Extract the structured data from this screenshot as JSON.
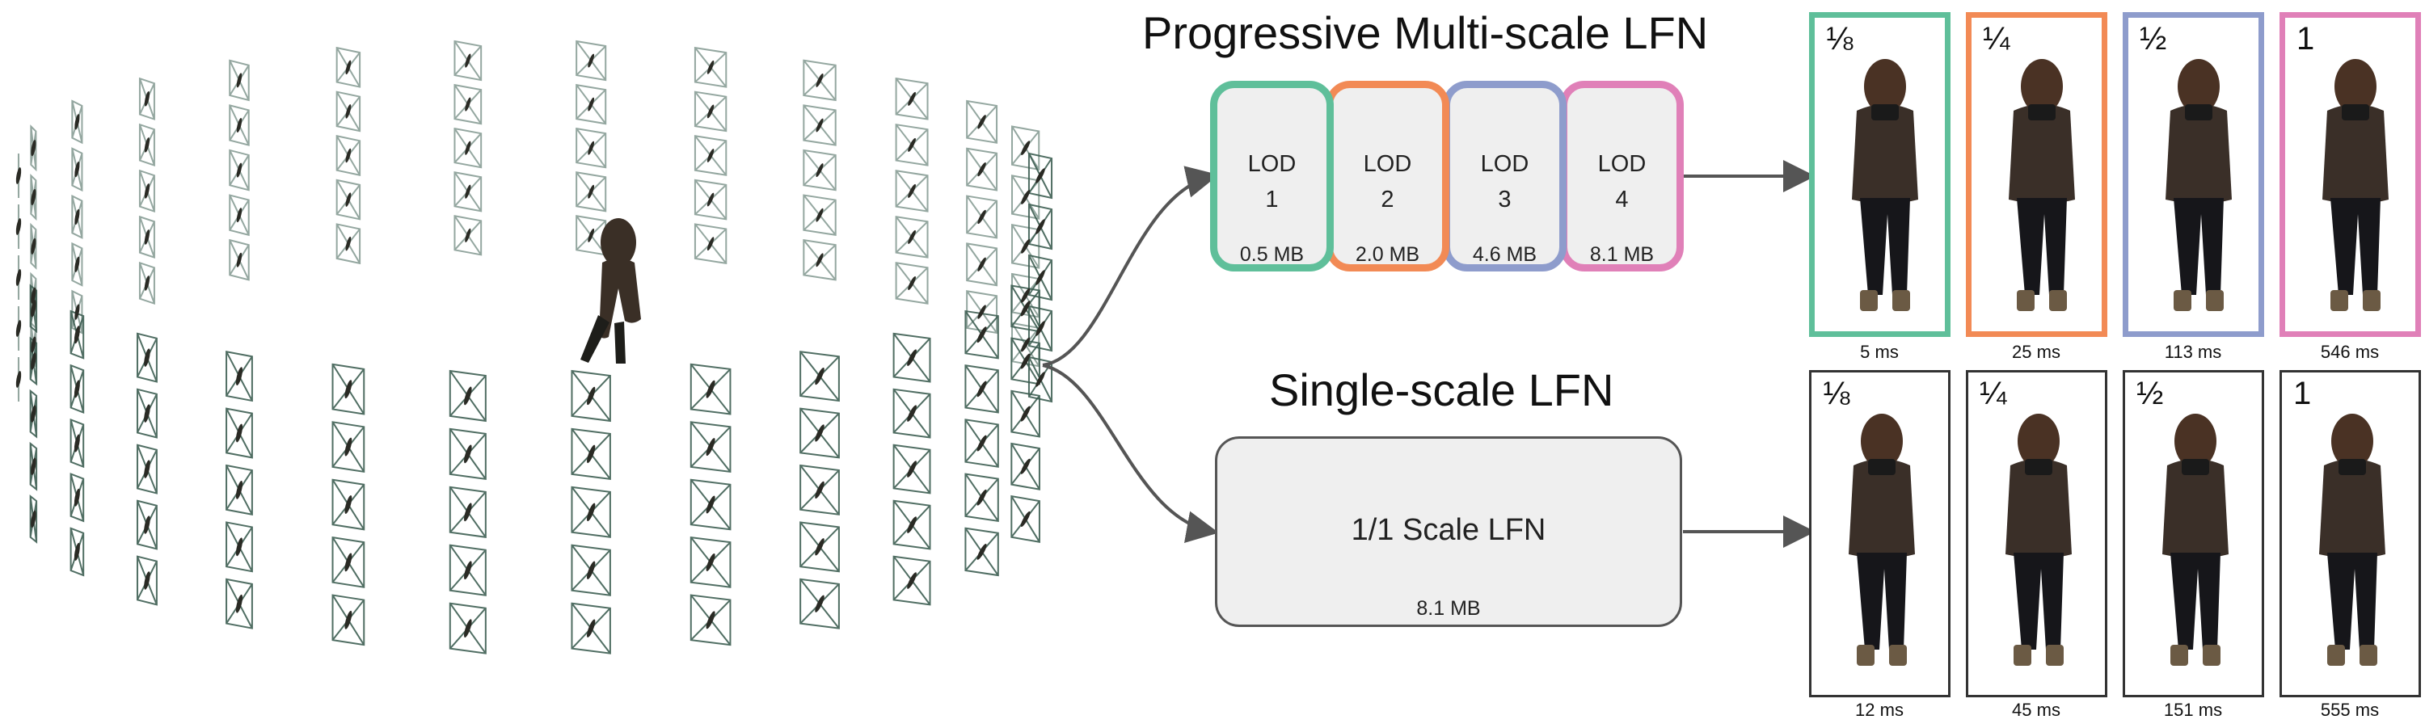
{
  "titles": {
    "progressive": "Progressive Multi-scale LFN",
    "single": "Single-scale LFN"
  },
  "lods": [
    {
      "line1": "LOD",
      "line2": "1",
      "size": "0.5 MB",
      "color": "#5fbf9a"
    },
    {
      "line1": "LOD",
      "line2": "2",
      "size": "2.0 MB",
      "color": "#f28a55"
    },
    {
      "line1": "LOD",
      "line2": "3",
      "size": "4.6 MB",
      "color": "#8e9ccc"
    },
    {
      "line1": "LOD",
      "line2": "4",
      "size": "8.1 MB",
      "color": "#e080b8"
    }
  ],
  "single_box": {
    "label": "1/1 Scale LFN",
    "size": "8.1 MB"
  },
  "top_row": [
    {
      "scale": "⅛",
      "time": "5 ms",
      "color": "#5fbf9a"
    },
    {
      "scale": "¼",
      "time": "25 ms",
      "color": "#f28a55"
    },
    {
      "scale": "½",
      "time": "113 ms",
      "color": "#8e9ccc"
    },
    {
      "scale": "1",
      "time": "546 ms",
      "color": "#e080b8"
    }
  ],
  "bottom_row": [
    {
      "scale": "⅛",
      "time": "12 ms",
      "color": "#333333"
    },
    {
      "scale": "¼",
      "time": "45 ms",
      "color": "#333333"
    },
    {
      "scale": "½",
      "time": "151 ms",
      "color": "#333333"
    },
    {
      "scale": "1",
      "time": "555 ms",
      "color": "#333333"
    }
  ]
}
